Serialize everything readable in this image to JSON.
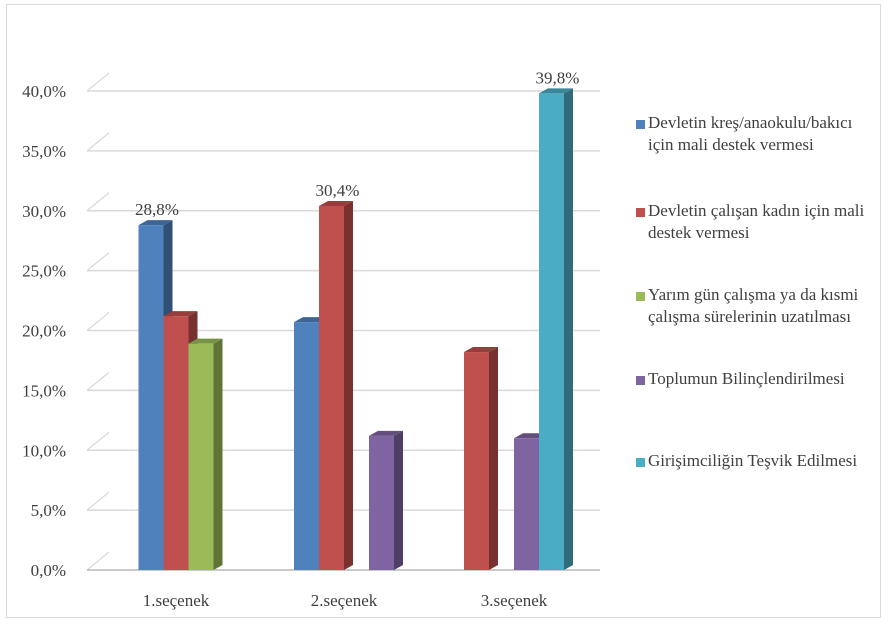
{
  "chart_data": {
    "type": "bar",
    "categories": [
      "1.seçenek",
      "2.seçenek",
      "3.seçenek"
    ],
    "ylim": [
      0,
      40
    ],
    "yticks": [
      "0,0%",
      "5,0%",
      "10,0%",
      "15,0%",
      "20,0%",
      "25,0%",
      "30,0%",
      "35,0%",
      "40,0%"
    ],
    "grid": true,
    "legend_position": "right",
    "series": [
      {
        "name": "Devletin kreş/anaokulu/bakıcı için mali destek vermesi",
        "color": "#4f81bd",
        "values": [
          28.8,
          20.7,
          null
        ]
      },
      {
        "name": "Devletin çalışan kadın için mali destek vermesi",
        "color": "#c0504d",
        "values": [
          21.2,
          30.4,
          18.2
        ]
      },
      {
        "name": "Yarım gün çalışma ya da kısmi çalışma sürelerinin uzatılması",
        "color": "#9bbb59",
        "values": [
          18.9,
          null,
          null
        ]
      },
      {
        "name": "Toplumun Bilinçlendirilmesi",
        "color": "#8064a2",
        "values": [
          null,
          11.2,
          11.0
        ]
      },
      {
        "name": "Girişimciliğin Teşvik Edilmesi",
        "color": "#4bacc6",
        "values": [
          null,
          null,
          39.8
        ]
      }
    ],
    "data_labels": [
      {
        "series": 0,
        "category": 0,
        "text": "28,8%"
      },
      {
        "series": 1,
        "category": 1,
        "text": "30,4%"
      },
      {
        "series": 4,
        "category": 2,
        "text": "39,8%"
      }
    ]
  }
}
